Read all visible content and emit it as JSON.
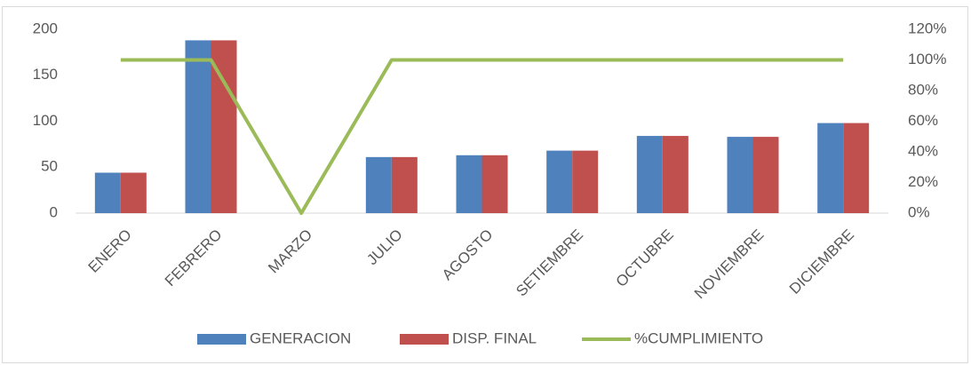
{
  "chart_data": {
    "type": "bar_line",
    "categories": [
      "ENERO",
      "FEBRERO",
      "MARZO",
      "JULIO",
      "AGOSTO",
      "SETIEMBRE",
      "OCTUBRE",
      "NOVIEMBRE",
      "DICIEMBRE"
    ],
    "series": [
      {
        "name": "GENERACION",
        "color": "#4f81bd",
        "type": "bar",
        "values": [
          44,
          188,
          0,
          61,
          63,
          68,
          84,
          83,
          98
        ]
      },
      {
        "name": "DISP. FINAL",
        "color": "#c0504d",
        "type": "bar",
        "values": [
          44,
          188,
          0,
          61,
          63,
          68,
          84,
          83,
          98
        ]
      },
      {
        "name": "%CUMPLIMIENTO",
        "color": "#9bbb59",
        "type": "line",
        "axis": "y2",
        "values": [
          100,
          100,
          0,
          100,
          100,
          100,
          100,
          100,
          100
        ]
      }
    ],
    "ylim": [
      0,
      200
    ],
    "yticks": [
      0,
      50,
      100,
      150,
      200
    ],
    "y2lim": [
      0,
      120
    ],
    "y2ticks": [
      {
        "value": 0,
        "label": "0%"
      },
      {
        "value": 20,
        "label": "20%"
      },
      {
        "value": 40,
        "label": "40%"
      },
      {
        "value": 60,
        "label": "60%"
      },
      {
        "value": 80,
        "label": "80%"
      },
      {
        "value": 100,
        "label": "100%"
      },
      {
        "value": 120,
        "label": "120%"
      }
    ],
    "grid": false,
    "legend": "bottom"
  }
}
